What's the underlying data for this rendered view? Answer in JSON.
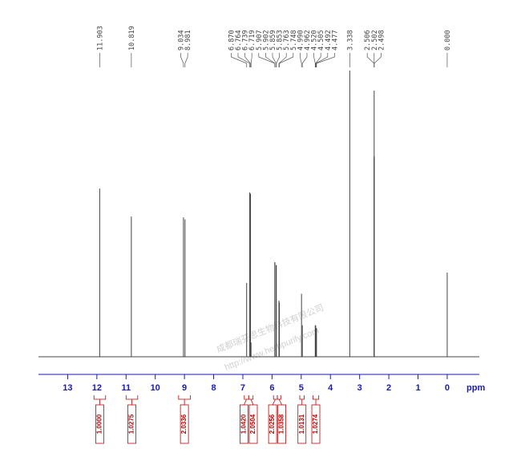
{
  "chart_data": {
    "type": "nmr",
    "x_label": "ppm",
    "xlim": [
      14.0,
      -1.1
    ],
    "xticks": [
      13,
      12,
      11,
      10,
      9,
      8,
      7,
      6,
      5,
      4,
      3,
      2,
      1,
      0
    ],
    "ylim": [
      0,
      100
    ],
    "color": "#444444",
    "axis_color": "#1a1ab8",
    "x": [
      11.903,
      10.819,
      9.034,
      8.981,
      6.87,
      6.764,
      6.739,
      6.719,
      5.907,
      5.902,
      5.859,
      5.853,
      5.763,
      5.748,
      4.99,
      4.962,
      4.52,
      4.505,
      4.492,
      4.477,
      3.338,
      2.506,
      2.502,
      2.498,
      0.0
    ],
    "x_labels": [
      "11.903",
      "10.819",
      "9.034",
      "8.981",
      "6.870",
      "6.764",
      "6.739",
      "6.719",
      "5.907",
      "5.902",
      "5.859",
      "5.853",
      "5.763",
      "5.748",
      "4.990",
      "4.962",
      "4.520",
      "4.505",
      "4.492",
      "4.477",
      "3.338",
      "2.506",
      "2.502",
      "2.498",
      "0.000"
    ],
    "values": [
      58.8,
      49,
      48.7,
      48,
      25.8,
      57.4,
      57,
      5,
      33,
      33,
      32,
      32,
      19.6,
      19,
      22,
      11,
      11,
      11,
      10,
      10,
      100,
      70,
      93,
      70,
      29.4
    ],
    "integrals": {
      "color": "#c00000",
      "ranges": [
        [
          12.1,
          11.7
        ],
        [
          11.0,
          10.6
        ],
        [
          9.2,
          8.8
        ],
        [
          6.95,
          6.8
        ],
        [
          6.8,
          6.65
        ],
        [
          5.95,
          5.82
        ],
        [
          5.82,
          5.7
        ],
        [
          5.05,
          4.9
        ],
        [
          4.6,
          4.4
        ]
      ],
      "values": [
        1.0,
        1.0275,
        2.0336,
        1.042,
        2.0504,
        2.0256,
        1.0358,
        1.0131,
        1.0274
      ],
      "value_labels": [
        "1.0000",
        "1.0275",
        "2.0336",
        "1.0420",
        "2.0504",
        "2.0256",
        "1.0358",
        "1.0131",
        "1.0274"
      ]
    },
    "watermark": [
      "成都瑞芬思生物科技有限公司",
      "http://www.herbpurify.com"
    ]
  }
}
